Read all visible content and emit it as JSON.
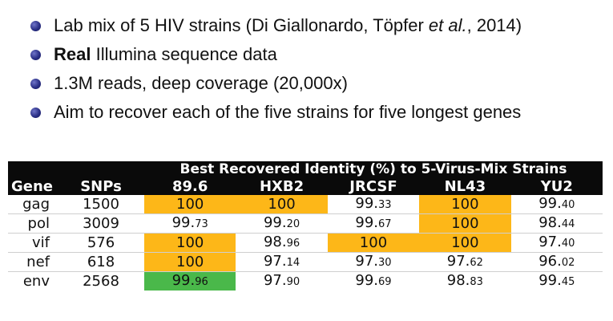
{
  "bullets": [
    {
      "prefix": "Lab mix of 5 HIV strains (Di Giallonardo, Töpfer ",
      "italic": "et al.",
      "suffix": ", 2014)"
    },
    {
      "bold": "Real",
      "rest": " Illumina sequence data"
    },
    {
      "text": "1.3M reads, deep coverage (20,000x)"
    },
    {
      "text": "Aim to recover each of the five strains for five longest genes"
    }
  ],
  "table": {
    "super_title": "Best Recovered Identity (%) to 5-Virus-Mix Strains",
    "headers": [
      "Gene",
      "SNPs",
      "89.6",
      "HXB2",
      "JRCSF",
      "NL43",
      "YU2"
    ],
    "rows": [
      {
        "gene": "gag",
        "snps": "1500",
        "cells": [
          {
            "int": "100",
            "dec": "",
            "color": "orange"
          },
          {
            "int": "100",
            "dec": "",
            "color": "orange"
          },
          {
            "int": "99.",
            "dec": "33",
            "color": "none"
          },
          {
            "int": "100",
            "dec": "",
            "color": "orange"
          },
          {
            "int": "99.",
            "dec": "40",
            "color": "none"
          }
        ]
      },
      {
        "gene": "pol",
        "snps": "3009",
        "cells": [
          {
            "int": "99.",
            "dec": "73",
            "color": "none"
          },
          {
            "int": "99.",
            "dec": "20",
            "color": "none"
          },
          {
            "int": "99.",
            "dec": "67",
            "color": "none"
          },
          {
            "int": "100",
            "dec": "",
            "color": "orange"
          },
          {
            "int": "98.",
            "dec": "44",
            "color": "none"
          }
        ]
      },
      {
        "gene": "vif",
        "snps": "576",
        "cells": [
          {
            "int": "100",
            "dec": "",
            "color": "orange"
          },
          {
            "int": "98.",
            "dec": "96",
            "color": "none"
          },
          {
            "int": "100",
            "dec": "",
            "color": "orange"
          },
          {
            "int": "100",
            "dec": "",
            "color": "orange"
          },
          {
            "int": "97.",
            "dec": "40",
            "color": "none"
          }
        ]
      },
      {
        "gene": "nef",
        "snps": "618",
        "cells": [
          {
            "int": "100",
            "dec": "",
            "color": "orange"
          },
          {
            "int": "97.",
            "dec": "14",
            "color": "none"
          },
          {
            "int": "97.",
            "dec": "30",
            "color": "none"
          },
          {
            "int": "97.",
            "dec": "62",
            "color": "none"
          },
          {
            "int": "96.",
            "dec": "02",
            "color": "none"
          }
        ]
      },
      {
        "gene": "env",
        "snps": "2568",
        "cells": [
          {
            "int": "99.",
            "dec": "96",
            "color": "green"
          },
          {
            "int": "97.",
            "dec": "90",
            "color": "none"
          },
          {
            "int": "99.",
            "dec": "69",
            "color": "none"
          },
          {
            "int": "98.",
            "dec": "83",
            "color": "none"
          },
          {
            "int": "99.",
            "dec": "45",
            "color": "none"
          }
        ]
      }
    ],
    "colors": {
      "orange": "#fdb718",
      "green": "#4ab84a",
      "header": "#0a0a0a",
      "bullet": "#2a2f86"
    }
  }
}
